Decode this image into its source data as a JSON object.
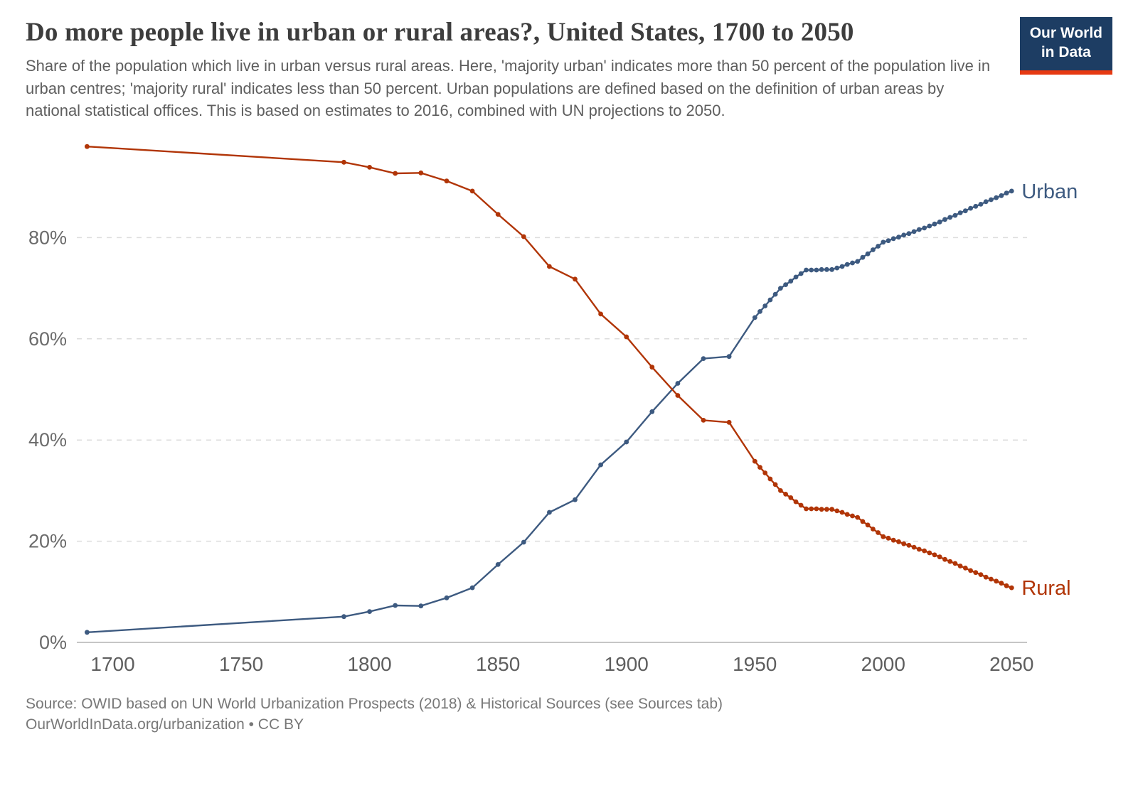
{
  "header": {
    "title": "Do more people live in urban or rural areas?, United States, 1700 to 2050",
    "subtitle": "Share of the population which live in urban versus rural areas. Here, 'majority urban' indicates more than 50 percent of the population live in urban centres; 'majority rural' indicates less than 50 percent. Urban populations are defined based on the definition of urban areas by national statistical offices. This is based on estimates to 2016, combined with UN projections to 2050."
  },
  "logo": {
    "line1": "Our World",
    "line2": "in Data",
    "background_color": "#1d3d63",
    "accent_color": "#e63912"
  },
  "chart_data": {
    "type": "line",
    "title": "Do more people live in urban or rural areas?, United States, 1700 to 2050",
    "xlabel": "",
    "ylabel": "",
    "grid": true,
    "legend_position": "end-of-line",
    "xlim": [
      1686,
      2056
    ],
    "ylim": [
      0,
      100
    ],
    "x_ticks": [
      1700,
      1750,
      1800,
      1850,
      1900,
      1950,
      2000,
      2050
    ],
    "y_ticks": [
      0,
      20,
      40,
      60,
      80
    ],
    "y_tick_suffix": "%",
    "x": [
      1690,
      1790,
      1800,
      1810,
      1820,
      1830,
      1840,
      1850,
      1860,
      1870,
      1880,
      1890,
      1900,
      1910,
      1920,
      1930,
      1940,
      1950,
      1952,
      1954,
      1956,
      1958,
      1960,
      1962,
      1964,
      1966,
      1968,
      1970,
      1972,
      1974,
      1976,
      1978,
      1980,
      1982,
      1984,
      1986,
      1988,
      1990,
      1992,
      1994,
      1996,
      1998,
      2000,
      2002,
      2004,
      2006,
      2008,
      2010,
      2012,
      2014,
      2016,
      2018,
      2020,
      2022,
      2024,
      2026,
      2028,
      2030,
      2032,
      2034,
      2036,
      2038,
      2040,
      2042,
      2044,
      2046,
      2048,
      2050
    ],
    "series": [
      {
        "name": "Urban",
        "color": "#3d5a80",
        "values": [
          2.0,
          5.1,
          6.1,
          7.3,
          7.2,
          8.8,
          10.8,
          15.4,
          19.8,
          25.7,
          28.2,
          35.1,
          39.6,
          45.6,
          51.2,
          56.1,
          56.5,
          64.2,
          65.4,
          66.5,
          67.7,
          68.8,
          70.0,
          70.7,
          71.4,
          72.2,
          72.9,
          73.6,
          73.6,
          73.6,
          73.7,
          73.7,
          73.7,
          74.0,
          74.3,
          74.7,
          75.0,
          75.3,
          76.1,
          76.8,
          77.6,
          78.3,
          79.1,
          79.4,
          79.8,
          80.1,
          80.5,
          80.8,
          81.2,
          81.6,
          81.9,
          82.3,
          82.7,
          83.1,
          83.6,
          84.0,
          84.4,
          84.9,
          85.3,
          85.8,
          86.2,
          86.6,
          87.1,
          87.5,
          87.9,
          88.3,
          88.8,
          89.2
        ]
      },
      {
        "name": "Rural",
        "color": "#b13507",
        "values": [
          98.0,
          94.9,
          93.9,
          92.7,
          92.8,
          91.2,
          89.2,
          84.6,
          80.2,
          74.3,
          71.8,
          64.9,
          60.4,
          54.4,
          48.8,
          43.9,
          43.5,
          35.8,
          34.6,
          33.5,
          32.3,
          31.2,
          30.0,
          29.3,
          28.6,
          27.8,
          27.1,
          26.4,
          26.4,
          26.4,
          26.3,
          26.3,
          26.3,
          26.0,
          25.7,
          25.3,
          25.0,
          24.7,
          23.9,
          23.2,
          22.4,
          21.7,
          20.9,
          20.6,
          20.2,
          19.9,
          19.5,
          19.2,
          18.8,
          18.4,
          18.1,
          17.7,
          17.3,
          16.9,
          16.4,
          16.0,
          15.6,
          15.1,
          14.7,
          14.2,
          13.8,
          13.4,
          12.9,
          12.5,
          12.1,
          11.7,
          11.2,
          10.8
        ]
      }
    ]
  },
  "footer": {
    "source": "Source: OWID based on UN World Urbanization Prospects (2018) & Historical Sources (see Sources tab)",
    "attribution": "OurWorldInData.org/urbanization • CC BY"
  }
}
